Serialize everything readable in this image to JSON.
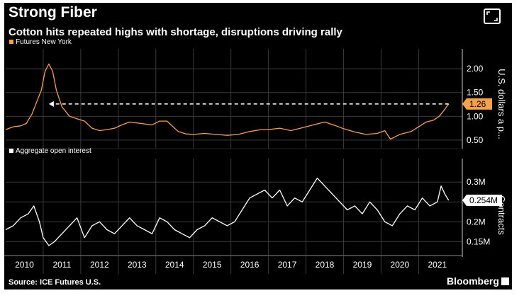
{
  "header": {
    "title": "Strong Fiber",
    "subtitle": "Cotton hits repeated highs with shortage, disruptions driving rally"
  },
  "footer": {
    "source": "Source: ICE Futures U.S.",
    "brand": "Bloomberg"
  },
  "icons": {
    "expand": "expand-icon",
    "brand": "bloomberg-logo-icon"
  },
  "colors": {
    "background": "#000000",
    "futures_line": "#f5a04a",
    "open_interest_line": "#ffffff",
    "grid": "#3a3a3a",
    "arrow": "#ffffff"
  },
  "chart_data": [
    {
      "type": "line",
      "legend": "Futures New York",
      "ylabel": "U.S. dollars a p...",
      "ylim": [
        0.35,
        2.3
      ],
      "yticks": [
        0.5,
        1.0,
        1.5,
        2.0
      ],
      "ytick_labels": [
        "0.50",
        "1.00",
        "1.50",
        "2.00"
      ],
      "last_value_label": "1.26",
      "annotation": "dashed arrow from latest price back to early 2011 level",
      "x": [
        2010.0,
        2010.2,
        2010.4,
        2010.55,
        2010.7,
        2010.85,
        2010.95,
        2011.05,
        2011.15,
        2011.25,
        2011.35,
        2011.5,
        2011.7,
        2011.9,
        2012.1,
        2012.3,
        2012.5,
        2012.7,
        2012.9,
        2013.1,
        2013.3,
        2013.5,
        2013.7,
        2013.9,
        2014.1,
        2014.3,
        2014.5,
        2014.6,
        2014.8,
        2015.0,
        2015.3,
        2015.6,
        2015.9,
        2016.2,
        2016.5,
        2016.8,
        2017.0,
        2017.3,
        2017.6,
        2017.9,
        2018.2,
        2018.5,
        2018.8,
        2019.0,
        2019.3,
        2019.6,
        2019.9,
        2020.1,
        2020.25,
        2020.5,
        2020.8,
        2021.0,
        2021.2,
        2021.4,
        2021.55,
        2021.7,
        2021.8
      ],
      "y": [
        0.72,
        0.78,
        0.8,
        0.85,
        1.05,
        1.35,
        1.55,
        1.95,
        2.1,
        1.95,
        1.55,
        1.2,
        1.0,
        0.95,
        0.9,
        0.75,
        0.7,
        0.72,
        0.75,
        0.82,
        0.88,
        0.86,
        0.84,
        0.82,
        0.9,
        0.9,
        0.75,
        0.68,
        0.63,
        0.62,
        0.64,
        0.62,
        0.6,
        0.62,
        0.68,
        0.72,
        0.72,
        0.75,
        0.7,
        0.76,
        0.82,
        0.88,
        0.8,
        0.74,
        0.67,
        0.62,
        0.64,
        0.7,
        0.52,
        0.62,
        0.68,
        0.78,
        0.88,
        0.92,
        1.0,
        1.15,
        1.26
      ]
    },
    {
      "type": "line",
      "legend": "Aggregate open interest",
      "ylabel": "Contracts",
      "ylim": [
        0.115,
        0.345
      ],
      "yticks": [
        0.15,
        0.2,
        0.25,
        0.3
      ],
      "ytick_labels": [
        "0.15M",
        "0.2M",
        "0.25M",
        "0.3M"
      ],
      "last_value_label": "0.254M",
      "x": [
        2010.0,
        2010.2,
        2010.4,
        2010.6,
        2010.75,
        2010.9,
        2011.0,
        2011.15,
        2011.3,
        2011.5,
        2011.7,
        2011.9,
        2012.1,
        2012.3,
        2012.5,
        2012.7,
        2012.9,
        2013.1,
        2013.3,
        2013.5,
        2013.7,
        2013.9,
        2014.1,
        2014.3,
        2014.5,
        2014.7,
        2014.9,
        2015.1,
        2015.3,
        2015.5,
        2015.7,
        2015.9,
        2016.1,
        2016.3,
        2016.5,
        2016.7,
        2016.9,
        2017.1,
        2017.3,
        2017.5,
        2017.7,
        2017.9,
        2018.1,
        2018.3,
        2018.5,
        2018.7,
        2018.9,
        2019.1,
        2019.3,
        2019.5,
        2019.7,
        2019.9,
        2020.1,
        2020.3,
        2020.5,
        2020.7,
        2020.9,
        2021.1,
        2021.3,
        2021.5,
        2021.6,
        2021.7,
        2021.8
      ],
      "y": [
        0.18,
        0.19,
        0.21,
        0.22,
        0.24,
        0.2,
        0.16,
        0.14,
        0.15,
        0.17,
        0.19,
        0.21,
        0.16,
        0.19,
        0.2,
        0.18,
        0.17,
        0.19,
        0.21,
        0.19,
        0.18,
        0.17,
        0.21,
        0.2,
        0.18,
        0.17,
        0.16,
        0.18,
        0.19,
        0.21,
        0.2,
        0.19,
        0.2,
        0.23,
        0.26,
        0.27,
        0.28,
        0.26,
        0.28,
        0.24,
        0.26,
        0.25,
        0.28,
        0.31,
        0.29,
        0.27,
        0.25,
        0.23,
        0.24,
        0.22,
        0.25,
        0.23,
        0.2,
        0.19,
        0.22,
        0.24,
        0.23,
        0.26,
        0.24,
        0.25,
        0.29,
        0.27,
        0.254
      ]
    }
  ],
  "x_axis": {
    "range": [
      2010.0,
      2021.9
    ],
    "ticks": [
      2010,
      2011,
      2012,
      2013,
      2014,
      2015,
      2016,
      2017,
      2018,
      2019,
      2020,
      2021
    ],
    "labels": [
      "2010",
      "2011",
      "2012",
      "2013",
      "2014",
      "2015",
      "2016",
      "2017",
      "2018",
      "2019",
      "2020",
      "2021"
    ]
  }
}
